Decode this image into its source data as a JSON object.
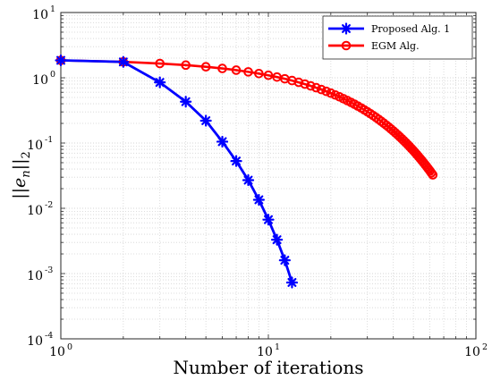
{
  "chart_data": {
    "type": "line",
    "xscale": "log",
    "yscale": "log",
    "xlim": [
      1,
      100
    ],
    "ylim": [
      0.0001,
      10
    ],
    "xlabel": "Number of iterations",
    "ylabel": "||e_n||_2",
    "grid": true,
    "legend_position": "top-right",
    "x_ticks": [
      {
        "base": "10",
        "exp": "0"
      },
      {
        "base": "10",
        "exp": "1"
      },
      {
        "base": "10",
        "exp": "2"
      }
    ],
    "y_ticks": [
      {
        "base": "10",
        "exp": "-4"
      },
      {
        "base": "10",
        "exp": "-3"
      },
      {
        "base": "10",
        "exp": "-2"
      },
      {
        "base": "10",
        "exp": "-1"
      },
      {
        "base": "10",
        "exp": "0"
      },
      {
        "base": "10",
        "exp": "1"
      }
    ],
    "series": [
      {
        "name": "Proposed Alg. 1",
        "color": "#0000ff",
        "marker": "asterisk",
        "x": [
          1,
          2,
          3,
          4,
          5,
          6,
          7,
          8,
          9,
          10,
          11,
          12,
          13
        ],
        "y": [
          1.85,
          1.75,
          0.85,
          0.43,
          0.22,
          0.105,
          0.053,
          0.027,
          0.0135,
          0.0067,
          0.0033,
          0.0016,
          0.00073
        ]
      },
      {
        "name": "EGM Alg.",
        "color": "#ff0000",
        "marker": "circle",
        "x_range": [
          1,
          62
        ],
        "y_model": {
          "a": 1.85,
          "b": 0.00275,
          "c": 1.4,
          "d": 0.052
        }
      }
    ]
  }
}
